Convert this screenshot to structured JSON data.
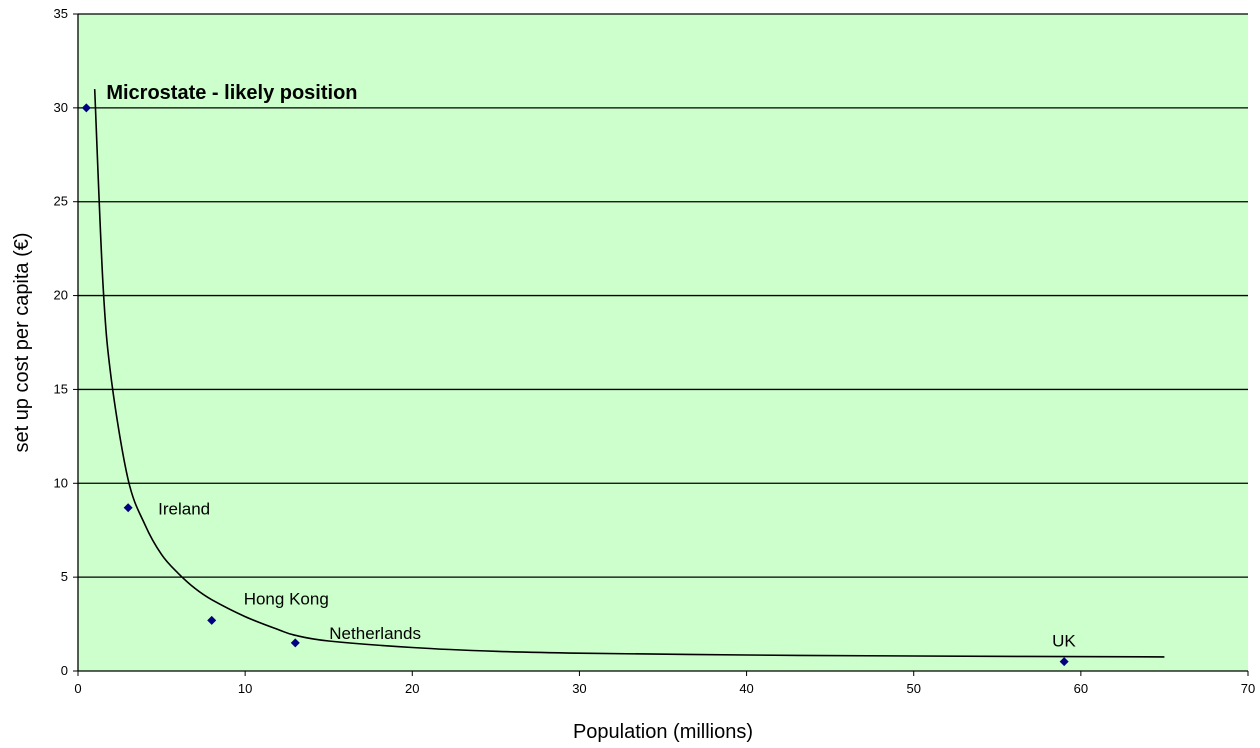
{
  "chart_data": {
    "type": "scatter",
    "title": "",
    "xlabel": "Population (millions)",
    "ylabel": "set up cost per capita (€)",
    "xlim": [
      0,
      70
    ],
    "ylim": [
      0,
      35
    ],
    "xticks": [
      0,
      10,
      20,
      30,
      40,
      50,
      60,
      70
    ],
    "yticks": [
      0,
      5,
      10,
      15,
      20,
      25,
      30,
      35
    ],
    "grid": "horizontal",
    "legend": "none",
    "colors": {
      "plot_background": "#ccffcc",
      "point": "#000080",
      "curve": "#000000",
      "grid": "#000000"
    },
    "annotation": {
      "text": "Microstate - likely position",
      "x": 0.5,
      "y": 30
    },
    "points": [
      {
        "label": "",
        "x": 0.5,
        "y": 30
      },
      {
        "label": "Ireland",
        "x": 3,
        "y": 8.7
      },
      {
        "label": "Hong Kong",
        "x": 8,
        "y": 2.7
      },
      {
        "label": "Netherlands",
        "x": 13,
        "y": 1.5
      },
      {
        "label": "UK",
        "x": 59,
        "y": 0.5
      }
    ],
    "trend_curve": [
      [
        1,
        31
      ],
      [
        1.5,
        20.5
      ],
      [
        2,
        15.5
      ],
      [
        3,
        10.2
      ],
      [
        4,
        7.8
      ],
      [
        5,
        6.2
      ],
      [
        6,
        5.2
      ],
      [
        7,
        4.4
      ],
      [
        8,
        3.8
      ],
      [
        10,
        2.9
      ],
      [
        12,
        2.2
      ],
      [
        13,
        1.9
      ],
      [
        15,
        1.6
      ],
      [
        20,
        1.25
      ],
      [
        25,
        1.05
      ],
      [
        30,
        0.95
      ],
      [
        40,
        0.85
      ],
      [
        50,
        0.8
      ],
      [
        65,
        0.75
      ]
    ]
  }
}
